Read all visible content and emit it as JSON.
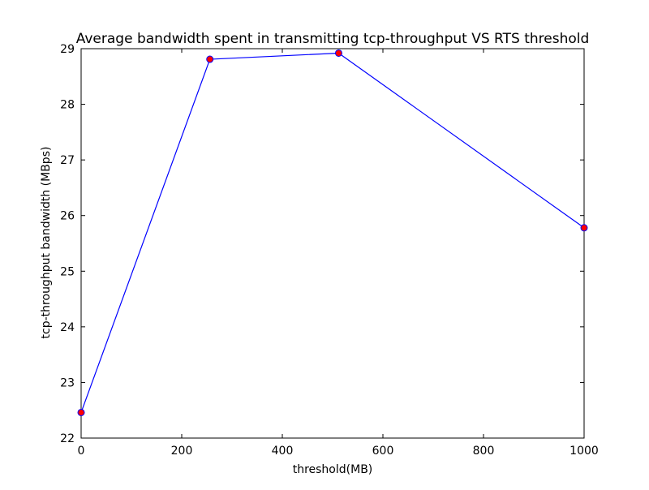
{
  "chart_data": {
    "type": "line",
    "title": "Average bandwidth spent in transmitting tcp-throughput VS RTS threshold",
    "xlabel": "threshold(MB)",
    "ylabel": "tcp-throughput bandwidth (MBps)",
    "xlim": [
      0,
      1000
    ],
    "ylim": [
      22,
      29
    ],
    "xticks": [
      0,
      200,
      400,
      600,
      800,
      1000
    ],
    "yticks": [
      22,
      23,
      24,
      25,
      26,
      27,
      28,
      29
    ],
    "grid": false,
    "legend": "none",
    "series": [
      {
        "x": [
          0,
          256,
          512,
          1000
        ],
        "y": [
          22.46,
          28.81,
          28.92,
          25.78
        ],
        "line_color": "#0000ff",
        "marker": "circle",
        "marker_color": "#ff0000"
      }
    ]
  }
}
